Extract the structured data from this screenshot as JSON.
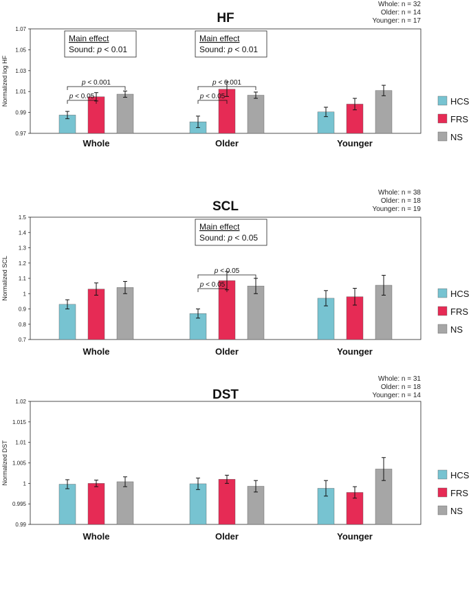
{
  "chart_data": [
    {
      "type": "bar",
      "title": "HF",
      "ylabel": "Normalized log HF",
      "xlabel": "",
      "ylim": [
        0.97,
        1.07
      ],
      "yticks": [
        "0.97",
        "0.99",
        "1.01",
        "1.03",
        "1.05",
        "1.07"
      ],
      "categories": [
        "Whole",
        "Older",
        "Younger"
      ],
      "sample_sizes": [
        "Whole: n = 32",
        "Older: n = 14",
        "Younger: n = 17"
      ],
      "series": [
        {
          "name": "HCS",
          "values": [
            0.9875,
            0.981,
            0.9905
          ],
          "errors": [
            0.0035,
            0.0055,
            0.0045
          ]
        },
        {
          "name": "FRS",
          "values": [
            1.005,
            1.0123,
            0.998
          ],
          "errors": [
            0.004,
            0.007,
            0.0055
          ]
        },
        {
          "name": "NS",
          "values": [
            1.0075,
            1.0065,
            1.011
          ],
          "errors": [
            0.003,
            0.003,
            0.005
          ]
        }
      ],
      "annotations": [
        {
          "group": 0,
          "title": "Main effect",
          "prefix": "Sound: ",
          "p": "p",
          "rest": " < 0.01"
        },
        {
          "group": 1,
          "title": "Main effect",
          "prefix": "Sound: ",
          "p": "p",
          "rest": " < 0.01"
        }
      ],
      "significance": [
        {
          "group": 0,
          "from": 0,
          "to": 1,
          "p": "p",
          "rest": " < 0.05"
        },
        {
          "group": 0,
          "from": 0,
          "to": 2,
          "p": "p",
          "rest": " < 0.001"
        },
        {
          "group": 1,
          "from": 0,
          "to": 1,
          "p": "p",
          "rest": " < 0.05"
        },
        {
          "group": 1,
          "from": 0,
          "to": 2,
          "p": "p",
          "rest": " < 0.001"
        }
      ]
    },
    {
      "type": "bar",
      "title": "SCL",
      "ylabel": "Normalized SCL",
      "xlabel": "",
      "ylim": [
        0.7,
        1.5
      ],
      "yticks": [
        "0.7",
        "0.8",
        "0.9",
        "1",
        "1.1",
        "1.2",
        "1.3",
        "1.4",
        "1.5"
      ],
      "categories": [
        "Whole",
        "Older",
        "Younger"
      ],
      "sample_sizes": [
        "Whole: n = 38",
        "Older: n = 18",
        "Younger: n = 19"
      ],
      "series": [
        {
          "name": "HCS",
          "values": [
            0.93,
            0.87,
            0.97
          ],
          "errors": [
            0.03,
            0.03,
            0.05
          ]
        },
        {
          "name": "FRS",
          "values": [
            1.03,
            1.085,
            0.98
          ],
          "errors": [
            0.04,
            0.06,
            0.055
          ]
        },
        {
          "name": "NS",
          "values": [
            1.04,
            1.05,
            1.055
          ],
          "errors": [
            0.04,
            0.05,
            0.065
          ]
        }
      ],
      "annotations": [
        {
          "group": 1,
          "title": "Main effect",
          "prefix": "Sound: ",
          "p": "p",
          "rest": " < 0.05"
        }
      ],
      "significance": [
        {
          "group": 1,
          "from": 0,
          "to": 1,
          "p": "p",
          "rest": " < 0.05"
        },
        {
          "group": 1,
          "from": 0,
          "to": 2,
          "p": "p",
          "rest": " < 0.05"
        }
      ]
    },
    {
      "type": "bar",
      "title": "DST",
      "ylabel": "Normalized DST",
      "xlabel": "",
      "ylim": [
        0.99,
        1.02
      ],
      "yticks": [
        "0.99",
        "0.995",
        "1",
        "1.005",
        "1.01",
        "1.015",
        "1.02"
      ],
      "categories": [
        "Whole",
        "Older",
        "Younger"
      ],
      "sample_sizes": [
        "Whole: n = 31",
        "Older: n = 18",
        "Younger: n = 14"
      ],
      "series": [
        {
          "name": "HCS",
          "values": [
            0.9998,
            0.9999,
            0.9988
          ],
          "errors": [
            0.0011,
            0.0014,
            0.0019
          ]
        },
        {
          "name": "FRS",
          "values": [
            1.0,
            1.001,
            0.9978
          ],
          "errors": [
            0.0008,
            0.001,
            0.0014
          ]
        },
        {
          "name": "NS",
          "values": [
            1.0004,
            0.9993,
            1.0035
          ],
          "errors": [
            0.0012,
            0.0014,
            0.0028
          ]
        }
      ],
      "annotations": [],
      "significance": []
    }
  ],
  "legend": [
    {
      "name": "HCS",
      "color": "#77c3d1"
    },
    {
      "name": "FRS",
      "color": "#e62b55"
    },
    {
      "name": "NS",
      "color": "#a6a6a6"
    }
  ]
}
